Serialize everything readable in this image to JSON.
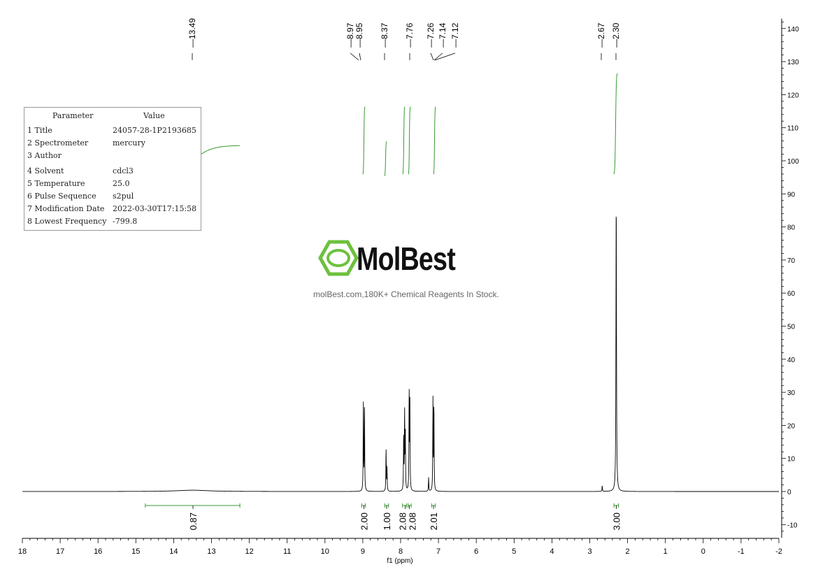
{
  "chart_data": {
    "type": "line",
    "xlabel": "f1 (ppm)",
    "x_ticks": [
      "18",
      "17",
      "16",
      "15",
      "14",
      "13",
      "12",
      "11",
      "10",
      "9",
      "8",
      "7",
      "6",
      "5",
      "4",
      "3",
      "2",
      "1",
      "0",
      "-1",
      "-2"
    ],
    "xlim": [
      18,
      -2
    ],
    "y_ticks": [
      "140",
      "130",
      "120",
      "110",
      "100",
      "90",
      "80",
      "70",
      "60",
      "50",
      "40",
      "30",
      "20",
      "10",
      "0",
      "-10"
    ],
    "ylim": [
      -14,
      143
    ],
    "peak_labels": [
      "13.49",
      "8.97",
      "8.95",
      "8.37",
      "7.76",
      "7.26",
      "7.14",
      "7.12",
      "2.67",
      "2.30"
    ],
    "series": [
      {
        "peaks": [
          {
            "ppm": 13.5,
            "height": 0.4,
            "width": 0.5
          },
          {
            "ppm": 8.985,
            "height": 26.5,
            "width": 0.006
          },
          {
            "ppm": 8.955,
            "height": 26.0,
            "width": 0.006
          },
          {
            "ppm": 8.385,
            "height": 13.0,
            "width": 0.006
          },
          {
            "ppm": 8.36,
            "height": 7.0,
            "width": 0.006
          },
          {
            "ppm": 7.92,
            "height": 16.5,
            "width": 0.006
          },
          {
            "ppm": 7.895,
            "height": 24.0,
            "width": 0.006
          },
          {
            "ppm": 7.875,
            "height": 16.5,
            "width": 0.006
          },
          {
            "ppm": 7.775,
            "height": 30.0,
            "width": 0.006
          },
          {
            "ppm": 7.755,
            "height": 26.0,
            "width": 0.006
          },
          {
            "ppm": 7.26,
            "height": 4.2,
            "width": 0.006
          },
          {
            "ppm": 7.145,
            "height": 27.5,
            "width": 0.006
          },
          {
            "ppm": 7.12,
            "height": 26.5,
            "width": 0.006
          },
          {
            "ppm": 2.67,
            "height": 1.8,
            "width": 0.006
          },
          {
            "ppm": 2.3,
            "height": 89.5,
            "width": 0.008
          }
        ]
      }
    ],
    "integrals": [
      {
        "from": 14.75,
        "to": 12.25,
        "center": 13.49,
        "value": "0.87"
      },
      {
        "from": 9.03,
        "to": 8.93,
        "center": 8.97,
        "value": "2.00"
      },
      {
        "from": 8.42,
        "to": 8.32,
        "center": 8.37,
        "value": "1.00"
      },
      {
        "from": 7.95,
        "to": 7.84,
        "center": 7.88,
        "value": "2.08"
      },
      {
        "from": 7.8,
        "to": 7.72,
        "center": 7.77,
        "value": "2.08"
      },
      {
        "from": 7.18,
        "to": 7.08,
        "center": 7.13,
        "value": "2.01"
      },
      {
        "from": 2.36,
        "to": 2.24,
        "center": 2.3,
        "value": "3.00"
      }
    ]
  },
  "parameters": {
    "header_param": "Parameter",
    "header_value": "Value",
    "rows": [
      {
        "key": "1 Title",
        "value": "24057-28-1P2193685"
      },
      {
        "key": "2 Spectrometer",
        "value": "mercury"
      },
      {
        "key": "3 Author",
        "value": ""
      },
      {
        "key": "4 Solvent",
        "value": "cdcl3"
      },
      {
        "key": "5 Temperature",
        "value": "25.0"
      },
      {
        "key": "6 Pulse Sequence",
        "value": "s2pul"
      },
      {
        "key": "7 Modification Date",
        "value": "2022-03-30T17:15:58"
      },
      {
        "key": "8 Lowest Frequency",
        "value": "-799.8"
      }
    ]
  },
  "watermark": {
    "logo_text": "MolBest",
    "subtitle": "molBest.com,180K+ Chemical Reagents In Stock."
  },
  "colors": {
    "spectrum": "#000000",
    "integral": "#3a9a32",
    "logo_green": "#6cc13c",
    "axis": "#000000"
  }
}
